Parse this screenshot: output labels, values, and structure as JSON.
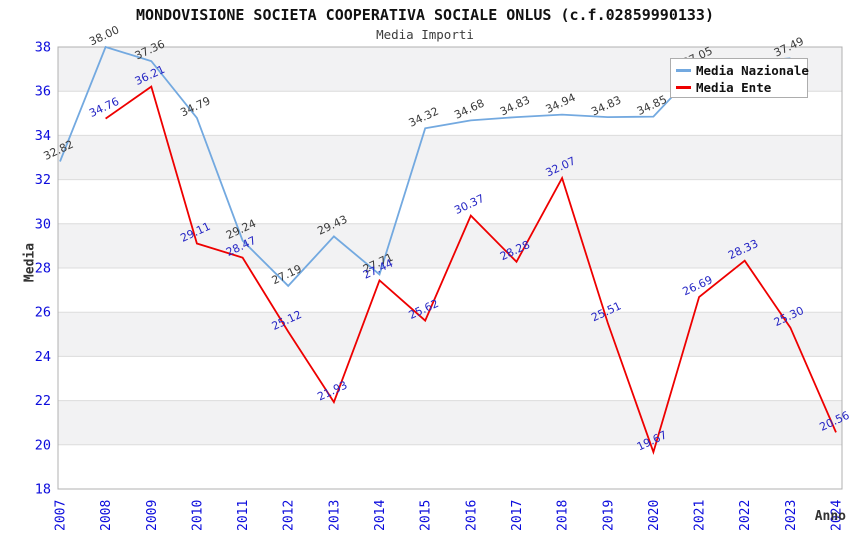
{
  "chart_data": {
    "type": "line",
    "title": "MONDOVISIONE SOCIETA COOPERATIVA SOCIALE ONLUS (c.f.02859990133)",
    "subtitle": "Media Importi",
    "xlabel": "Anno",
    "ylabel": "Media",
    "x": [
      2007,
      2008,
      2009,
      2010,
      2011,
      2012,
      2013,
      2014,
      2015,
      2016,
      2017,
      2018,
      2019,
      2020,
      2021,
      2022,
      2023,
      2024
    ],
    "ylim": [
      18,
      38
    ],
    "ytick_step": 2,
    "grid": "horizontal gridlines with alternating gray bands every 2 units",
    "legend_position": "top-right, overlapping plot",
    "series": [
      {
        "name": "Media Nazionale",
        "color": "#73a9e0",
        "label_color": "#3a3a3a",
        "values": [
          32.82,
          38.0,
          37.36,
          34.79,
          29.24,
          27.19,
          29.43,
          27.71,
          34.32,
          34.68,
          34.83,
          34.94,
          34.83,
          34.85,
          37.05,
          37.3,
          37.49,
          null
        ],
        "labels": [
          "32.82",
          "38.00",
          "37.36",
          "34.79",
          "29.24",
          "27.19",
          "29.43",
          "27.71",
          "34.32",
          "34.68",
          "34.83",
          "34.94",
          "34.83",
          "34.85",
          "37.05",
          null,
          "37.49",
          null
        ],
        "note": "2022 point label hidden behind legend box; value estimated from line position"
      },
      {
        "name": "Media Ente",
        "color": "#ee0000",
        "label_color": "#2525c4",
        "values": [
          null,
          34.76,
          36.21,
          29.11,
          28.47,
          25.12,
          21.93,
          27.44,
          25.62,
          30.37,
          28.28,
          32.07,
          25.51,
          19.67,
          26.69,
          28.33,
          25.3,
          20.56
        ],
        "labels": [
          null,
          "34.76",
          "36.21",
          "29.11",
          "28.47",
          "25.12",
          "21.93",
          "27.44",
          "25.62",
          "30.37",
          "28.28",
          "32.07",
          "25.51",
          "19.67",
          "26.69",
          "28.33",
          "25.30",
          "20.56"
        ]
      }
    ],
    "colors": {
      "axis_tick_color": "#0b0bdc",
      "band_fill": "#f2f2f3",
      "gridline": "#dcdcdc",
      "plot_border": "#b0b0b0",
      "title_color": "#111111",
      "subtitle_color": "#3c3c3c",
      "axis_title_color": "#333333"
    }
  }
}
